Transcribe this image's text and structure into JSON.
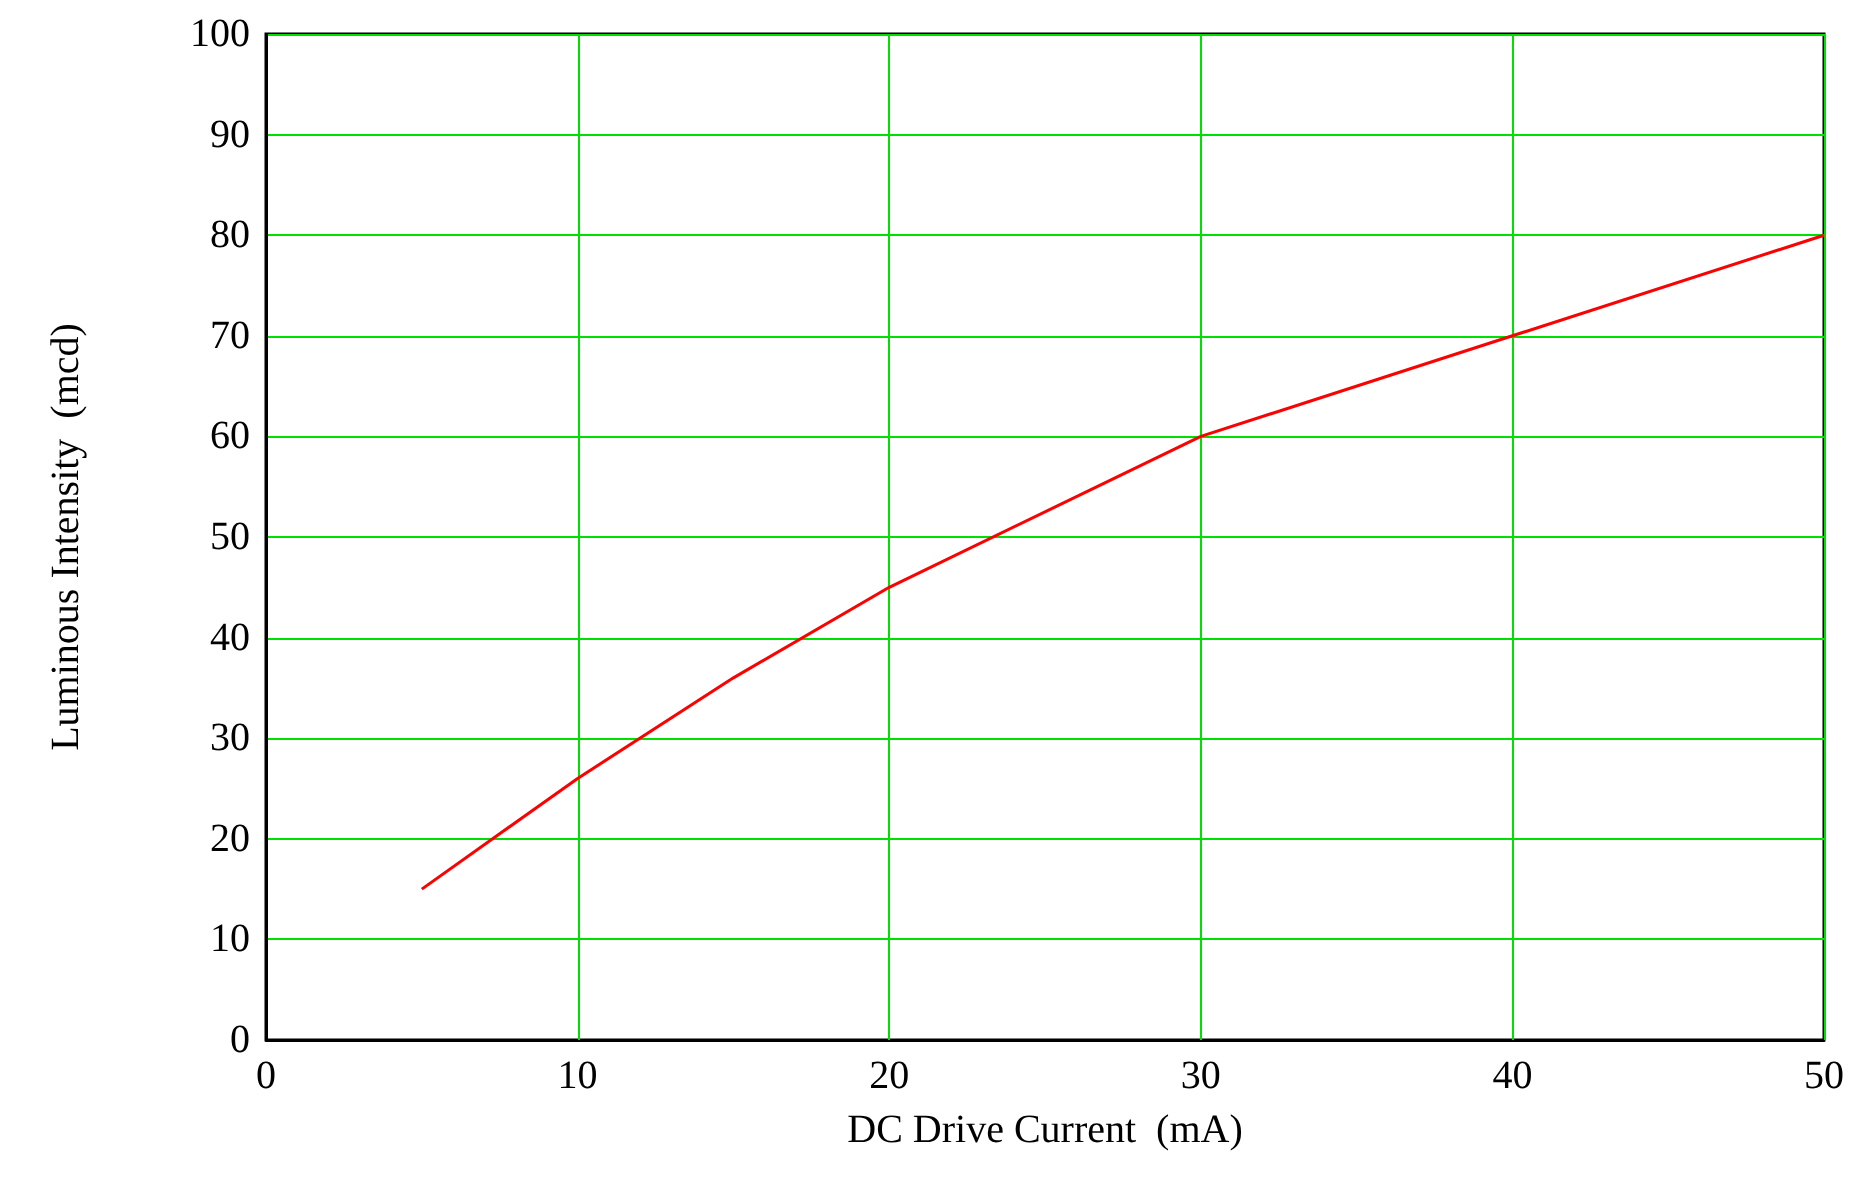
{
  "chart_data": {
    "type": "line",
    "xlabel": "DC Drive Current  (mA)",
    "ylabel": "Luminous Intensity  (mcd)",
    "x": [
      5,
      10,
      15,
      20,
      30,
      40,
      50
    ],
    "series": [
      {
        "color": "#ff0000",
        "values": [
          15,
          26,
          36,
          45,
          60,
          70,
          80
        ]
      }
    ],
    "xlim": [
      0,
      50
    ],
    "xticks": [
      0,
      10,
      20,
      30,
      40,
      50
    ],
    "ylim": [
      0,
      100
    ],
    "yticks": [
      0,
      10,
      20,
      30,
      40,
      50,
      60,
      70,
      80,
      90,
      100
    ],
    "grid": true,
    "marker": "none",
    "line_style": "solid"
  }
}
